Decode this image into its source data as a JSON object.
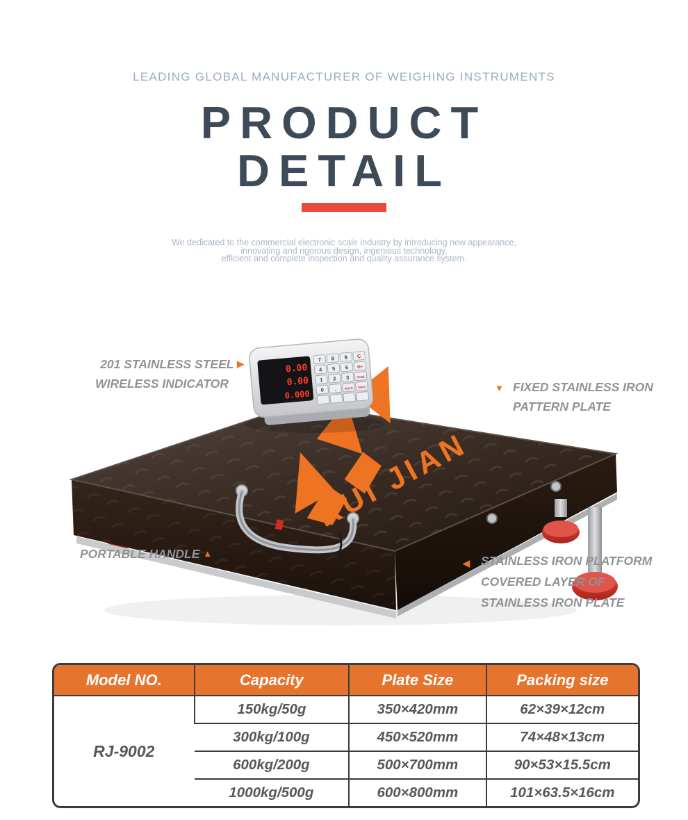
{
  "header": {
    "tagline": "LEADING GLOBAL MANUFACTURER OF WEIGHING INSTRUMENTS",
    "title_line1": "PRODUCT",
    "title_line2": "DETAIL",
    "description": {
      "line1": "We dedicated to the commercial electronic scale industry by introducing new appearance,",
      "line2": "innovating and rigorous design, ingenious technology,",
      "line3": "efficient and complete inspection and quality assurance system."
    }
  },
  "product": {
    "brand": "RUI JIAN",
    "indicator_display": [
      "0.00",
      "0.00",
      "0.000"
    ],
    "keypad": [
      [
        "7",
        "8",
        "9",
        "C"
      ],
      [
        "4",
        "5",
        "6",
        "M+"
      ],
      [
        "1",
        "2",
        "3",
        "TARE"
      ],
      [
        "0",
        ".",
        "HOLD",
        "ZERO"
      ],
      [
        "",
        "",
        "",
        ""
      ]
    ],
    "callouts": {
      "indicator": {
        "line1": "201 STAINLESS STEEL",
        "line2": "WIRELESS INDICATOR"
      },
      "pattern_plate": {
        "line1": "FIXED STAINLESS IRON",
        "line2": "PATTERN PLATE"
      },
      "handle": {
        "line1": "PORTABLE HANDLE"
      },
      "platform": {
        "line1": "STAINLESS IRON PLATFORM",
        "line2": "COVERED LAYER OF",
        "line3": "STAINLESS IRON PLATE"
      }
    }
  },
  "spec_table": {
    "headers": [
      "Model NO.",
      "Capacity",
      "Plate Size",
      "Packing size"
    ],
    "model": "RJ-9002",
    "rows": [
      {
        "capacity": "150kg/50g",
        "plate_size": "350×420mm",
        "packing_size": "62×39×12cm"
      },
      {
        "capacity": "300kg/100g",
        "plate_size": "450×520mm",
        "packing_size": "74×48×13cm"
      },
      {
        "capacity": "600kg/200g",
        "plate_size": "500×700mm",
        "packing_size": "90×53×15.5cm"
      },
      {
        "capacity": "1000kg/500g",
        "plate_size": "600×800mm",
        "packing_size": "101×63.5×16cm"
      }
    ]
  },
  "colors": {
    "accent_red": "#e84b3b",
    "marker_orange": "#ed7221",
    "table_header_orange": "#e5742e",
    "title_slate": "#3d4a57",
    "brand_orange": "#ee7322"
  }
}
